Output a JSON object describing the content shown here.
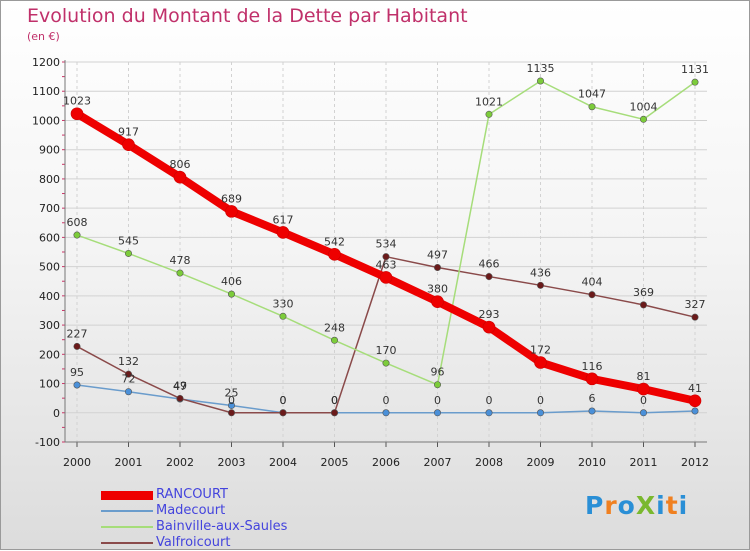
{
  "title": "Evolution du Montant de la Dette par Habitant",
  "subtitle": "(en €)",
  "logo": {
    "text": "ProXiti",
    "colors": [
      "#2a8fd6",
      "#f08020",
      "#2a8fd6",
      "#7ab82e",
      "#2a8fd6",
      "#f08020",
      "#2a8fd6"
    ]
  },
  "chart_data": {
    "type": "line",
    "title": "Evolution du Montant de la Dette par Habitant",
    "ylabel": "(en €)",
    "xlabel": "",
    "x": [
      "2000",
      "2001",
      "2002",
      "2003",
      "2004",
      "2005",
      "2006",
      "2007",
      "2008",
      "2009",
      "2010",
      "2011",
      "2012"
    ],
    "ylim": [
      -100,
      1200
    ],
    "yticks": [
      -100,
      0,
      100,
      200,
      300,
      400,
      500,
      600,
      700,
      800,
      900,
      1000,
      1100,
      1200
    ],
    "grid": true,
    "legend_position": "bottom-left",
    "series": [
      {
        "name": "RANCOURT",
        "color": "#ee0000",
        "line_color": "#ee0000",
        "width": 8,
        "values": [
          1023,
          917,
          806,
          689,
          617,
          542,
          463,
          380,
          293,
          172,
          116,
          81,
          41
        ],
        "labels": [
          "1023",
          "917",
          "806",
          "689",
          "617",
          "542",
          "463",
          "380",
          "293",
          "172",
          "116",
          "81",
          "41"
        ]
      },
      {
        "name": "Madecourt",
        "color": "#4a90d9",
        "line_color": "#6a9ccc",
        "width": 1.5,
        "values": [
          95,
          72,
          47,
          25,
          0,
          0,
          0,
          0,
          0,
          0,
          6,
          0,
          6
        ],
        "labels": [
          "95",
          "72",
          "47",
          "25",
          "0",
          "0",
          "0",
          "0",
          "0",
          "0",
          "6",
          "0",
          ""
        ]
      },
      {
        "name": "Bainville-aux-Saules",
        "color": "#7ccc3a",
        "line_color": "#a6dd7a",
        "width": 1.5,
        "values": [
          608,
          545,
          478,
          406,
          330,
          248,
          170,
          96,
          1021,
          1135,
          1047,
          1004,
          1131
        ],
        "labels": [
          "608",
          "545",
          "478",
          "406",
          "330",
          "248",
          "170",
          "96",
          "1021",
          "1135",
          "1047",
          "1004",
          "1131"
        ]
      },
      {
        "name": "Valfroicourt",
        "color": "#6b1a1a",
        "line_color": "#8a4a4a",
        "width": 1.5,
        "values": [
          227,
          132,
          49,
          0,
          0,
          0,
          534,
          497,
          466,
          436,
          404,
          369,
          327
        ],
        "labels": [
          "227",
          "132",
          "49",
          "0",
          "0",
          "0",
          "534",
          "497",
          "466",
          "436",
          "404",
          "369",
          "327"
        ]
      }
    ]
  }
}
